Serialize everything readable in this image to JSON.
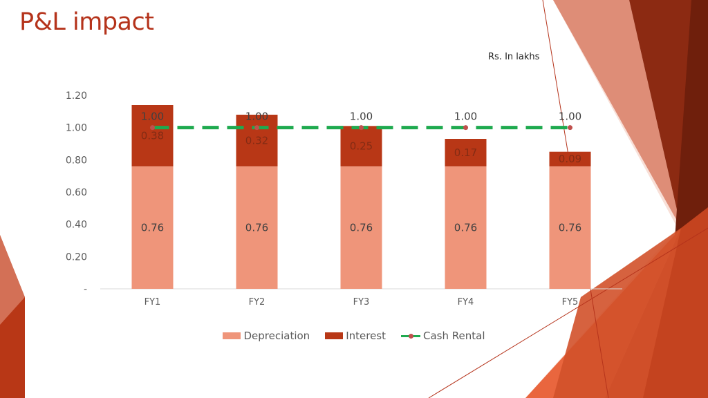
{
  "slide": {
    "title": "P&L impact",
    "unit_note": "Rs. In lakhs"
  },
  "colors": {
    "title": "#b5331b",
    "depreciation": "#ef957a",
    "interest": "#b83716",
    "cash_rental_line": "#1faa4f",
    "cash_rental_marker": "#c0504d"
  },
  "chart_data": {
    "type": "bar",
    "stacked": true,
    "categories": [
      "FY1",
      "FY2",
      "FY3",
      "FY4",
      "FY5"
    ],
    "series": [
      {
        "name": "Depreciation",
        "type": "bar",
        "values": [
          0.76,
          0.76,
          0.76,
          0.76,
          0.76
        ],
        "labels": [
          "0.76",
          "0.76",
          "0.76",
          "0.76",
          "0.76"
        ]
      },
      {
        "name": "Interest",
        "type": "bar",
        "values": [
          0.38,
          0.32,
          0.25,
          0.17,
          0.09
        ],
        "labels": [
          "0.38",
          "0.32",
          "0.25",
          "0.17",
          "0.09"
        ]
      },
      {
        "name": "Cash Rental",
        "type": "line",
        "style": "dashed",
        "values": [
          1.0,
          1.0,
          1.0,
          1.0,
          1.0
        ],
        "labels": [
          "1.00",
          "1.00",
          "1.00",
          "1.00",
          "1.00"
        ]
      }
    ],
    "yticks": [
      "-",
      "0.20",
      "0.40",
      "0.60",
      "0.80",
      "1.00",
      "1.20"
    ],
    "ylim": [
      0,
      1.2
    ],
    "legend_position": "bottom",
    "grid": false
  }
}
